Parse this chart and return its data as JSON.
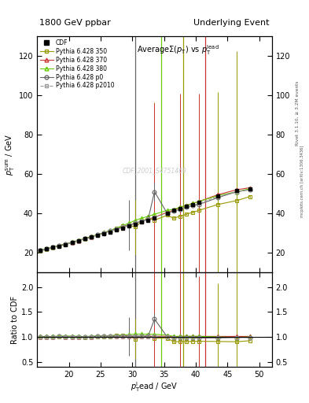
{
  "title_left": "1800 GeV ppbar",
  "title_right": "Underlying Event",
  "xlabel": "p_T^l ead / GeV",
  "ylabel_main": "p_T^sum / GeV",
  "ylabel_ratio": "Ratio to CDF",
  "watermark": "CDF_2001_S4751469",
  "rivet_text": "Rivet 3.1.10, ≥ 3.2M events",
  "mcplots_text": "mcplots.cern.ch [arXiv:1306.3436]",
  "xlim": [
    15,
    52
  ],
  "ylim_main": [
    10,
    130
  ],
  "ylim_ratio": [
    0.4,
    2.3
  ],
  "yticks_main": [
    20,
    40,
    60,
    80,
    100,
    120
  ],
  "yticks_ratio": [
    0.5,
    1.0,
    1.5,
    2.0
  ],
  "xticks": [
    20,
    25,
    30,
    35,
    40,
    45,
    50
  ],
  "cdf_x": [
    15.5,
    16.5,
    17.5,
    18.5,
    19.5,
    20.5,
    21.5,
    22.5,
    23.5,
    24.5,
    25.5,
    26.5,
    27.5,
    28.5,
    29.5,
    30.5,
    31.5,
    32.5,
    33.5,
    35.5,
    36.5,
    37.5,
    38.5,
    39.5,
    40.5,
    43.5,
    46.5,
    48.5
  ],
  "cdf_y": [
    21.0,
    21.8,
    22.7,
    23.3,
    24.1,
    25.0,
    26.0,
    27.0,
    27.8,
    28.7,
    29.5,
    30.5,
    31.5,
    32.5,
    33.5,
    34.5,
    35.5,
    36.5,
    37.5,
    40.0,
    41.5,
    42.5,
    43.5,
    44.5,
    45.5,
    49.0,
    51.5,
    52.5
  ],
  "cdf_yerr": [
    0.5,
    0.5,
    0.5,
    0.5,
    0.5,
    0.5,
    0.5,
    0.5,
    0.5,
    0.5,
    0.5,
    0.5,
    0.5,
    0.5,
    0.5,
    0.5,
    0.5,
    0.5,
    0.5,
    0.5,
    0.5,
    0.5,
    0.5,
    0.5,
    0.5,
    0.5,
    0.5,
    0.5
  ],
  "py350_x": [
    15.5,
    16.5,
    17.5,
    18.5,
    19.5,
    20.5,
    21.5,
    22.5,
    23.5,
    24.5,
    25.5,
    26.5,
    27.5,
    28.5,
    29.5,
    30.5,
    31.5,
    32.5,
    33.5,
    35.5,
    36.5,
    37.5,
    38.5,
    39.5,
    40.5,
    43.5,
    46.5,
    48.5
  ],
  "py350_y": [
    21.0,
    21.8,
    22.7,
    23.5,
    24.3,
    25.2,
    26.1,
    27.0,
    28.0,
    29.0,
    30.0,
    31.2,
    32.5,
    33.5,
    34.0,
    33.0,
    36.0,
    37.5,
    36.5,
    39.0,
    37.5,
    38.5,
    39.5,
    40.5,
    41.5,
    44.5,
    46.5,
    48.5
  ],
  "py350_yerr": [
    0.5,
    0.5,
    0.5,
    0.5,
    0.5,
    0.5,
    0.5,
    0.5,
    0.5,
    0.5,
    0.5,
    0.5,
    0.5,
    0.5,
    0.5,
    14.0,
    0.5,
    0.5,
    60.0,
    0.5,
    0.5,
    58.0,
    0.5,
    0.5,
    0.5,
    57.0,
    76.0,
    0.5
  ],
  "py370_x": [
    15.5,
    16.5,
    17.5,
    18.5,
    19.5,
    20.5,
    21.5,
    22.5,
    23.5,
    24.5,
    25.5,
    26.5,
    27.5,
    28.5,
    29.5,
    30.5,
    31.5,
    32.5,
    33.5,
    35.5,
    36.5,
    37.5,
    38.5,
    39.5,
    40.5,
    43.5,
    46.5,
    48.5
  ],
  "py370_y": [
    21.0,
    21.8,
    22.7,
    23.5,
    24.3,
    25.2,
    26.1,
    27.0,
    28.0,
    29.0,
    30.0,
    31.0,
    32.0,
    33.0,
    34.0,
    35.0,
    36.0,
    37.0,
    38.0,
    40.5,
    41.5,
    43.0,
    44.0,
    45.0,
    46.0,
    49.5,
    52.0,
    53.0
  ],
  "py370_yerr": [
    0.5,
    0.5,
    0.5,
    0.5,
    0.5,
    0.5,
    0.5,
    0.5,
    0.5,
    0.5,
    0.5,
    0.5,
    0.5,
    0.5,
    0.5,
    0.5,
    0.5,
    0.5,
    58.0,
    0.5,
    0.5,
    58.0,
    0.5,
    0.5,
    55.0,
    0.5,
    0.5,
    0.5
  ],
  "py380_x": [
    15.5,
    16.5,
    17.5,
    18.5,
    19.5,
    20.5,
    21.5,
    22.5,
    23.5,
    24.5,
    25.5,
    26.5,
    27.5,
    28.5,
    29.5,
    30.5,
    31.5,
    32.5,
    33.5,
    35.5,
    36.5,
    37.5,
    38.5,
    39.5,
    40.5,
    43.5,
    46.5,
    48.5
  ],
  "py380_y": [
    21.2,
    22.0,
    22.9,
    23.7,
    24.5,
    25.4,
    26.3,
    27.2,
    28.2,
    29.2,
    30.2,
    31.2,
    32.5,
    33.8,
    35.0,
    36.5,
    37.5,
    38.5,
    39.5,
    41.5,
    42.0,
    43.0,
    44.0,
    45.0,
    46.0,
    49.0,
    51.0,
    52.5
  ],
  "py380_yerr": [
    0.5,
    0.5,
    0.5,
    0.5,
    0.5,
    0.5,
    0.5,
    0.5,
    0.5,
    0.5,
    0.5,
    0.5,
    0.5,
    0.5,
    0.5,
    0.5,
    0.5,
    0.5,
    0.5,
    0.5,
    0.5,
    0.5,
    0.5,
    0.5,
    0.5,
    0.5,
    0.5,
    0.5
  ],
  "pyp0_x": [
    15.5,
    16.5,
    17.5,
    18.5,
    19.5,
    20.5,
    21.5,
    22.5,
    23.5,
    24.5,
    25.5,
    26.5,
    27.5,
    28.5,
    29.5,
    30.5,
    31.5,
    32.5,
    33.5,
    35.5,
    36.5,
    37.5,
    38.5,
    39.5,
    40.5,
    43.5,
    46.5,
    48.5
  ],
  "pyp0_y": [
    21.0,
    21.8,
    22.7,
    23.5,
    24.3,
    25.2,
    26.1,
    27.0,
    28.0,
    29.0,
    30.0,
    31.0,
    32.0,
    33.0,
    34.0,
    35.0,
    36.0,
    37.0,
    51.0,
    40.0,
    41.0,
    42.0,
    43.0,
    44.0,
    44.5,
    48.0,
    51.0,
    52.0
  ],
  "pyp0_yerr": [
    0.5,
    0.5,
    0.5,
    0.5,
    0.5,
    0.5,
    0.5,
    0.5,
    0.5,
    0.5,
    0.5,
    0.5,
    0.5,
    0.5,
    13.0,
    0.5,
    0.5,
    0.5,
    4.5,
    0.5,
    0.5,
    0.5,
    0.5,
    0.5,
    0.5,
    0.5,
    0.5,
    0.5
  ],
  "pyp2010_x": [
    15.5,
    16.5,
    17.5,
    18.5,
    19.5,
    20.5,
    21.5,
    22.5,
    23.5,
    24.5,
    25.5,
    26.5,
    27.5,
    28.5,
    29.5,
    30.5,
    31.5,
    32.5,
    33.5,
    35.5,
    36.5,
    37.5,
    38.5,
    39.5,
    40.5,
    43.5,
    46.5,
    48.5
  ],
  "pyp2010_y": [
    21.0,
    21.8,
    22.7,
    23.5,
    24.3,
    25.2,
    26.1,
    27.0,
    28.0,
    29.0,
    30.0,
    31.0,
    32.0,
    33.0,
    34.0,
    35.0,
    36.0,
    37.0,
    38.0,
    40.0,
    41.0,
    42.0,
    43.0,
    44.0,
    45.0,
    48.5,
    51.0,
    52.0
  ],
  "pyp2010_yerr": [
    0.5,
    0.5,
    0.5,
    0.5,
    0.5,
    0.5,
    0.5,
    0.5,
    0.5,
    0.5,
    0.5,
    0.5,
    0.5,
    0.5,
    0.5,
    0.5,
    0.5,
    0.5,
    0.5,
    0.5,
    0.5,
    0.5,
    0.5,
    0.5,
    0.5,
    0.5,
    0.5,
    0.5
  ],
  "color_350": "#999900",
  "color_370": "#cc3333",
  "color_380": "#66cc00",
  "color_p0": "#666666",
  "color_p2010": "#999999",
  "color_cdf": "#000000",
  "vline_p0_x": 30.5,
  "vline_380_x": 34.5,
  "vline_350_x": 38.0,
  "vline_370_x": 41.5,
  "vline_p0_color": "#666666",
  "vline_380_color": "#66cc00",
  "vline_350_color": "#999900",
  "vline_370_color": "#cc3333"
}
